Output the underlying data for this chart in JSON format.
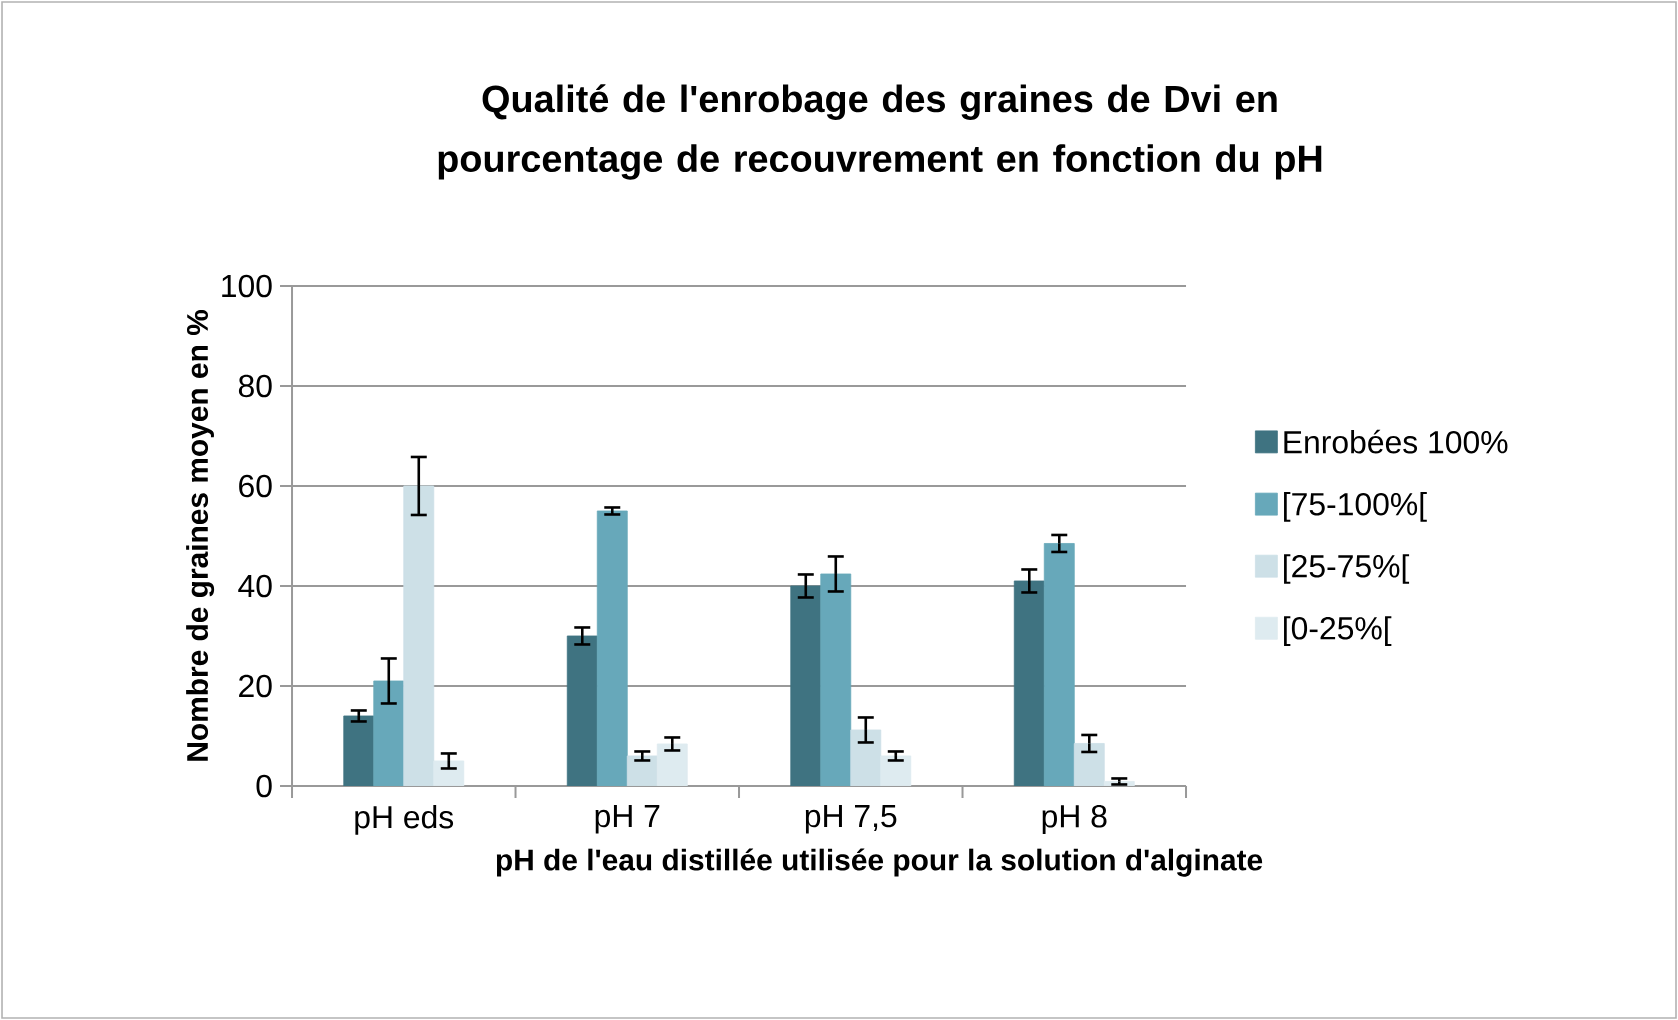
{
  "chart_data": {
    "type": "bar",
    "title": "Qualité de l'enrobage des graines de Dvi en pourcentage de recouvrement en fonction du pH",
    "xlabel": "pH de l'eau distillée utilisée pour la solution d'alginate",
    "ylabel": "Nombre de graines moyen en %",
    "categories": [
      "pH eds",
      "pH 7",
      "pH 7,5",
      "pH 8"
    ],
    "series": [
      {
        "name": "Enrobées 100%",
        "color": "#3f7381",
        "values": [
          14,
          30,
          40,
          41
        ],
        "errors": [
          1.1,
          1.7,
          2.3,
          2.3
        ]
      },
      {
        "name": "[75-100%[",
        "color": "#67a8ba",
        "values": [
          21,
          55,
          42.4,
          48.5
        ],
        "errors": [
          4.5,
          0.7,
          3.5,
          1.7
        ]
      },
      {
        "name": "[25-75%[",
        "color": "#cde0e7",
        "values": [
          60,
          6,
          11.2,
          8.5
        ],
        "errors": [
          5.8,
          0.9,
          2.5,
          1.7
        ]
      },
      {
        "name": "[0-25%[",
        "color": "#deebf0",
        "values": [
          5,
          8.4,
          6,
          0.9
        ],
        "errors": [
          1.5,
          1.3,
          0.9,
          0.6
        ]
      }
    ],
    "ylim": [
      0,
      100
    ],
    "yticks": [
      0,
      20,
      40,
      60,
      80,
      100
    ],
    "grid": "y",
    "legend": "right"
  }
}
